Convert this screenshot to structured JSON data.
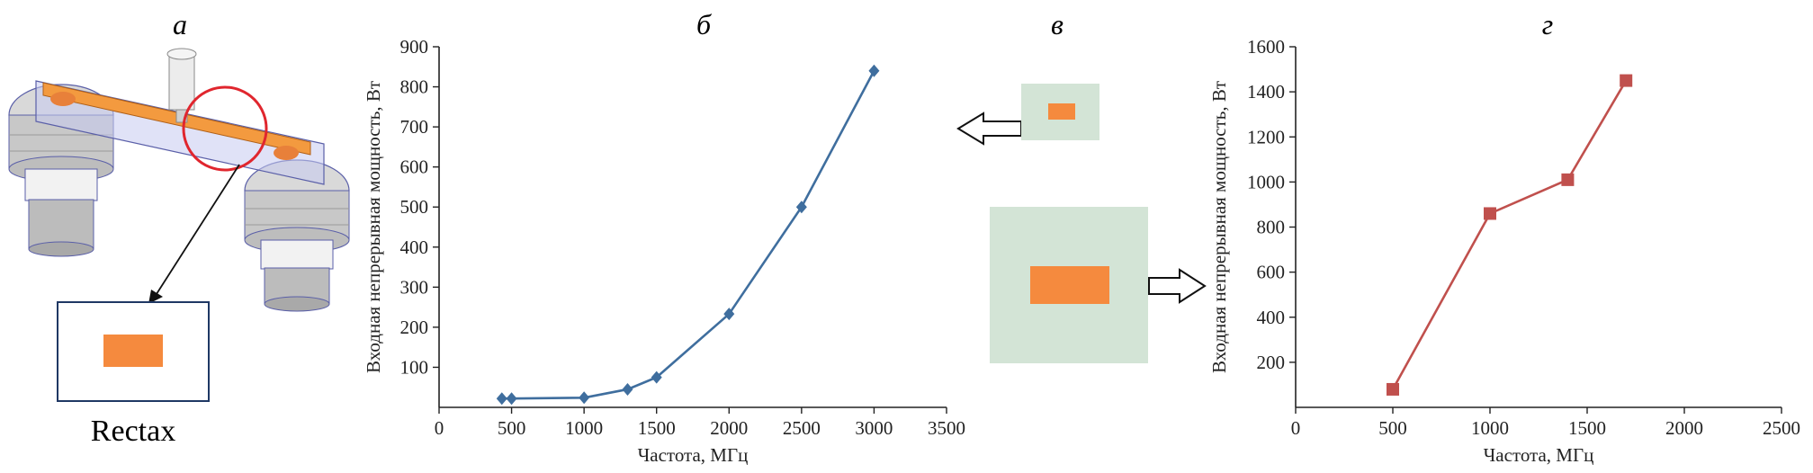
{
  "panels": {
    "a": {
      "letter": "а",
      "caption": "Rectax"
    },
    "b": {
      "letter": "б"
    },
    "v": {
      "letter": "в"
    },
    "g": {
      "letter": "г"
    }
  },
  "colors": {
    "series_b": "#3f6e9e",
    "series_g": "#c0504d",
    "rect_orange": "#f58a3e",
    "cross_section_bg": "#d3e4d6",
    "frame_navy": "#1f3864",
    "highlight_circle": "#e0262e"
  },
  "chart_data": [
    {
      "type": "line",
      "panel": "б",
      "xlabel": "Частота, МГц",
      "ylabel": "Входная непрерывная мощность, Вт",
      "xlim": [
        0,
        3500
      ],
      "ylim": [
        0,
        900
      ],
      "xticks": [
        0,
        500,
        1000,
        1500,
        2000,
        2500,
        3000,
        3500
      ],
      "yticks": [
        100,
        200,
        300,
        400,
        500,
        600,
        700,
        800,
        900
      ],
      "marker": "diamond",
      "series": [
        {
          "x": [
            433,
            500,
            1000,
            1300,
            1500,
            2000,
            2500,
            3000
          ],
          "y": [
            22,
            22,
            24,
            45,
            75,
            233,
            500,
            840
          ]
        }
      ]
    },
    {
      "type": "line",
      "panel": "г",
      "xlabel": "Частота, МГц",
      "ylabel": "Входная непрерывная мощность, Вт",
      "xlim": [
        0,
        2500
      ],
      "ylim": [
        0,
        1600
      ],
      "xticks": [
        0,
        500,
        1000,
        1500,
        2000,
        2500
      ],
      "yticks": [
        200,
        400,
        600,
        800,
        1000,
        1200,
        1400,
        1600
      ],
      "marker": "square",
      "series": [
        {
          "x": [
            500,
            1000,
            1400,
            1700
          ],
          "y": [
            80,
            860,
            1010,
            1450
          ]
        }
      ]
    }
  ]
}
